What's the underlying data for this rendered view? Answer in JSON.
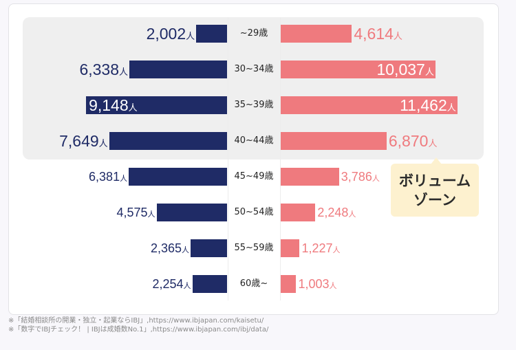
{
  "chart_data": {
    "type": "bar",
    "orientation": "horizontal-diverging",
    "categories": [
      "~29歳",
      "30~34歳",
      "35~39歳",
      "40~44歳",
      "45~49歳",
      "50~54歳",
      "55~59歳",
      "60歳~"
    ],
    "series": [
      {
        "side": "left",
        "color": "#1f2b66",
        "values": [
          2002,
          6338,
          9148,
          7649,
          6381,
          4575,
          2365,
          2254
        ]
      },
      {
        "side": "right",
        "color": "#ef7a7e",
        "values": [
          4614,
          10037,
          11462,
          6870,
          3786,
          2248,
          1227,
          1003
        ]
      }
    ],
    "unit": "人",
    "highlight": {
      "categories": [
        "~29歳",
        "30~34歳",
        "35~39歳",
        "40~44歳"
      ],
      "label": "ボリューム\nゾーン",
      "color": "#efefef",
      "label_bg": "#fdf1cf"
    }
  },
  "footnotes": [
    "※「結婚相談所の開業・独立・起業ならIBJ」,https://www.ibjapan.com/kaisetu/",
    "※「数字でIBJチェック！ | IBJは成婚数No.1」,https://www.ibjapan.com/ibj/data/"
  ]
}
